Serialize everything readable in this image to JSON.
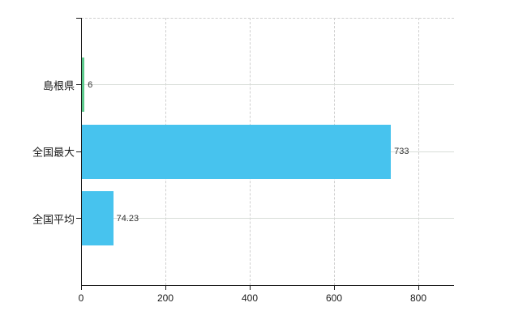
{
  "chart_data": {
    "type": "bar",
    "orientation": "horizontal",
    "title": "",
    "xlabel": "",
    "ylabel": "",
    "categories": [
      "島根県",
      "全国最大",
      "全国平均"
    ],
    "values": [
      6,
      733,
      74.23
    ],
    "value_labels": [
      "6",
      "733",
      "74.23"
    ],
    "bar_colors": [
      "#5cc98c",
      "#47c3ee",
      "#47c3ee"
    ],
    "xticks": [
      0,
      200,
      400,
      600,
      800
    ],
    "xtick_labels": [
      "0",
      "200",
      "400",
      "600",
      "800"
    ],
    "xlim": [
      0,
      884
    ],
    "grid": true,
    "legend_position": "none"
  },
  "colors": {
    "highlight_bar": "#5cc98c",
    "default_bar": "#47c3ee",
    "axis": "#1a1a1a",
    "grid_solid": "#d8ddd8",
    "grid_dashed": "#cfcfcf",
    "label_text": "#1a1a1a",
    "value_text": "#333333",
    "background": "#ffffff"
  }
}
